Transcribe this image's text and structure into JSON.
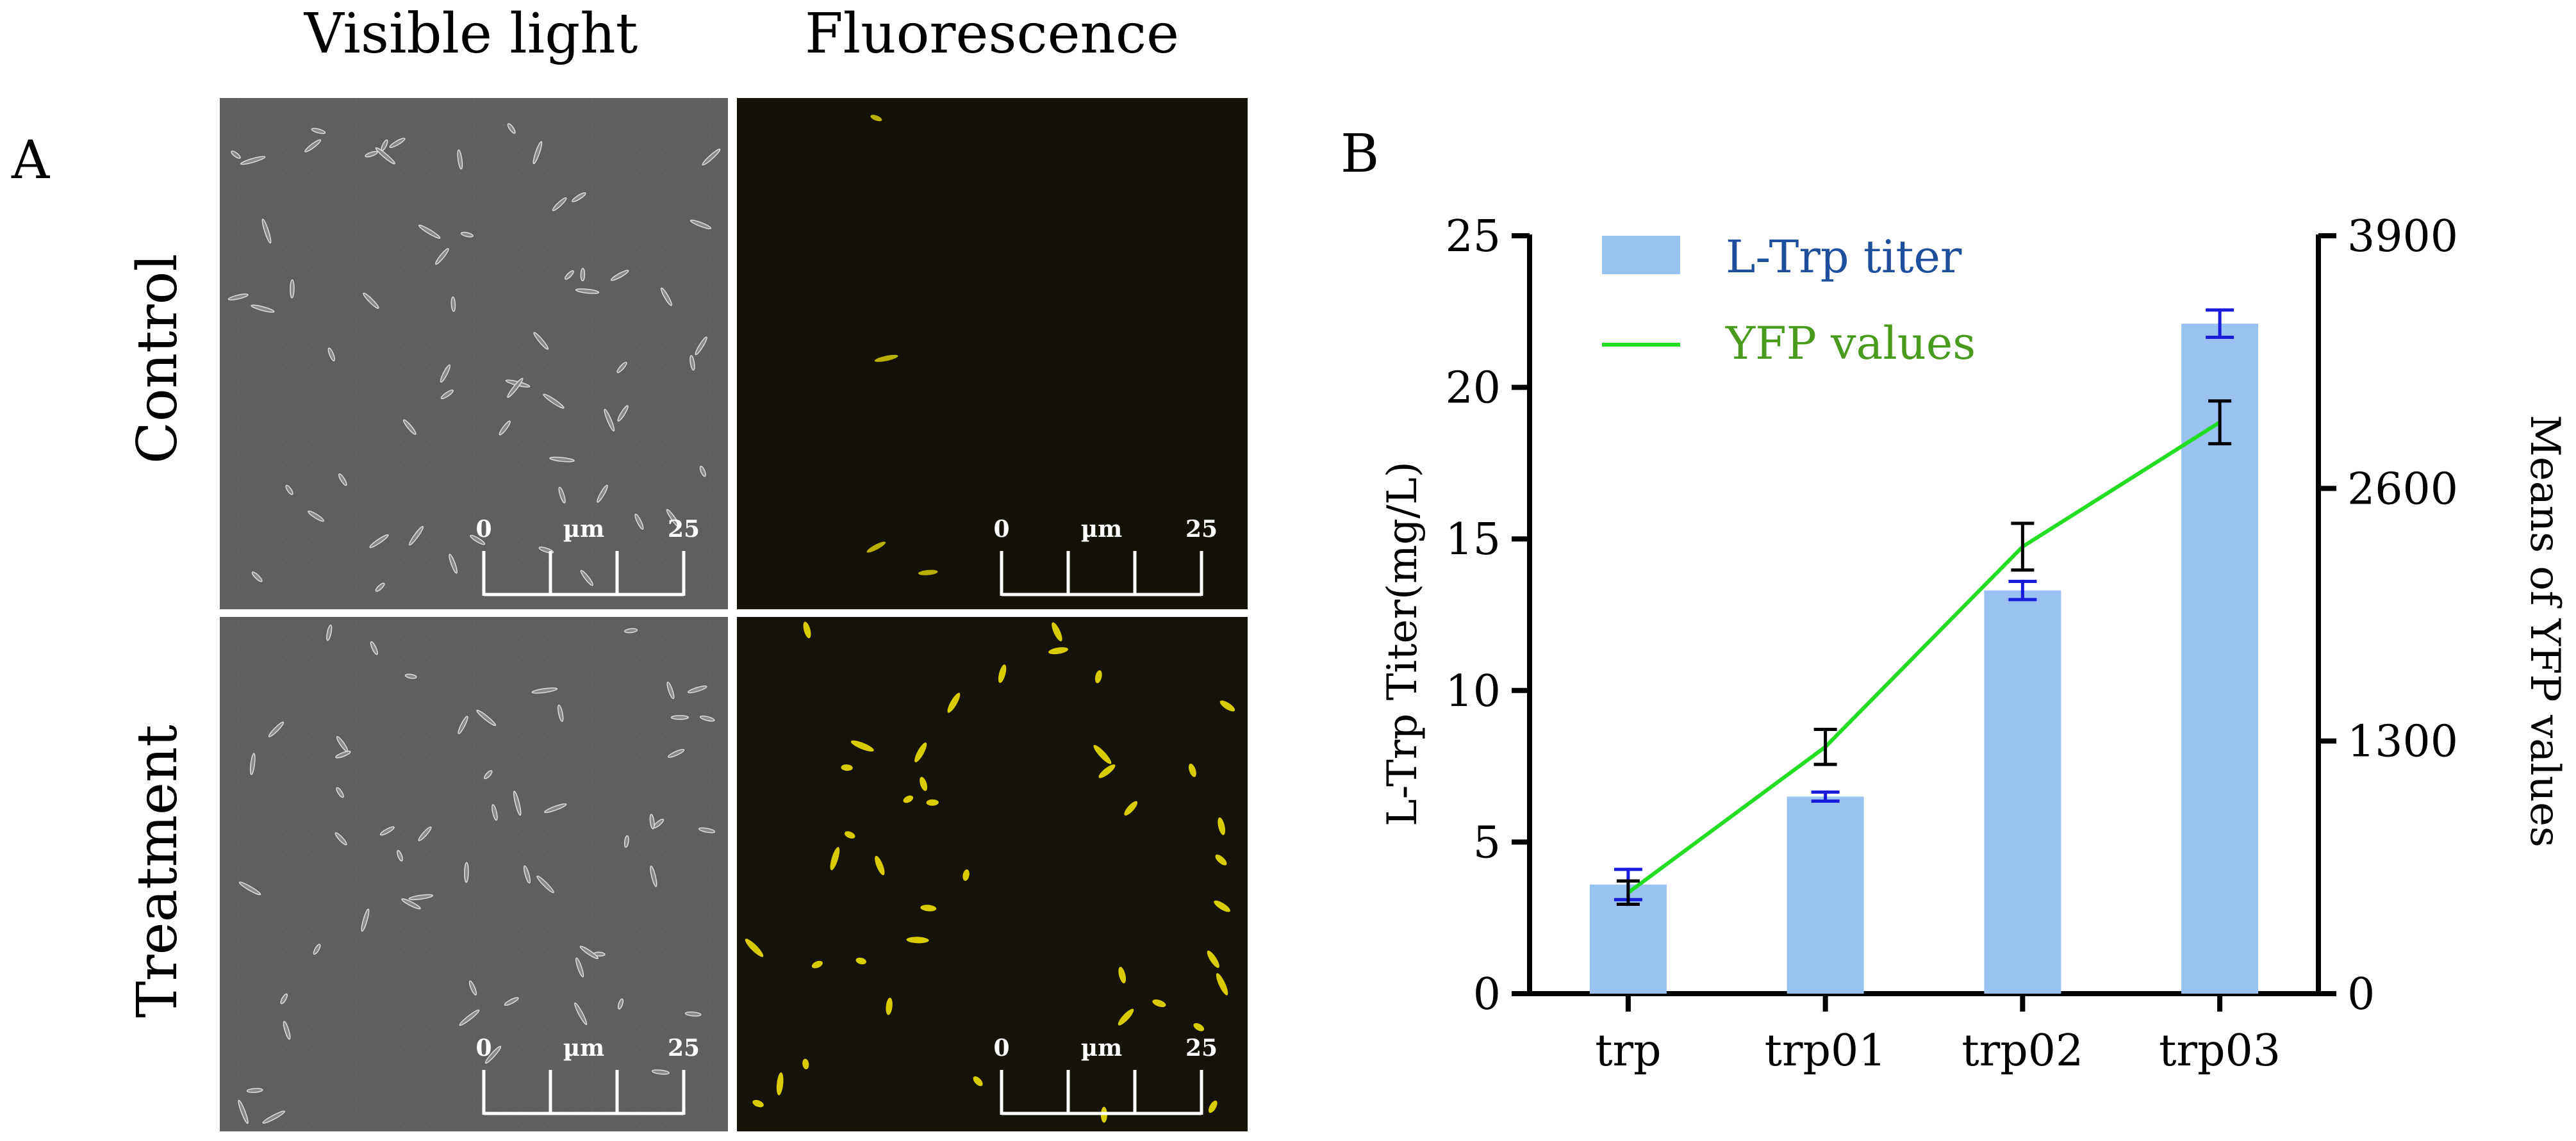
{
  "panel_a": {
    "label": "A",
    "column_titles": [
      "Visible light",
      "Fluorescence"
    ],
    "row_titles": [
      "Control",
      "Treatment"
    ],
    "scale_bar": {
      "start": "0",
      "unit": "µm",
      "end": "25"
    }
  },
  "panel_b": {
    "label": "B"
  },
  "chart_data": {
    "type": "bar",
    "categories": [
      "trp",
      "trp01",
      "trp02",
      "trp03"
    ],
    "series": [
      {
        "name": "L-Trp titer",
        "kind": "bar",
        "axis": "left",
        "color": "#99c2f2",
        "error_color": "#1a1adb",
        "values": [
          3.6,
          6.5,
          13.3,
          22.1
        ],
        "errors": [
          0.5,
          0.15,
          0.3,
          0.45
        ]
      },
      {
        "name": "YFP values",
        "kind": "line",
        "axis": "right",
        "color": "#22dd22",
        "error_color": "#000000",
        "values": [
          520,
          1270,
          2300,
          2940
        ],
        "errors": [
          60,
          90,
          120,
          110
        ]
      }
    ],
    "ylabel": "L-Trp Titer(mg/L)",
    "y2label": "Means of YFP values",
    "ylim": [
      0,
      25
    ],
    "y2lim": [
      0,
      3900
    ],
    "yticks": [
      "0",
      "5",
      "10",
      "15",
      "20",
      "25"
    ],
    "y2ticks": [
      "0",
      "1300",
      "2600",
      "3900"
    ],
    "legend_position": "top-left",
    "legend_text_colors": [
      "#1f4e9c",
      "#4a9a1e"
    ]
  }
}
